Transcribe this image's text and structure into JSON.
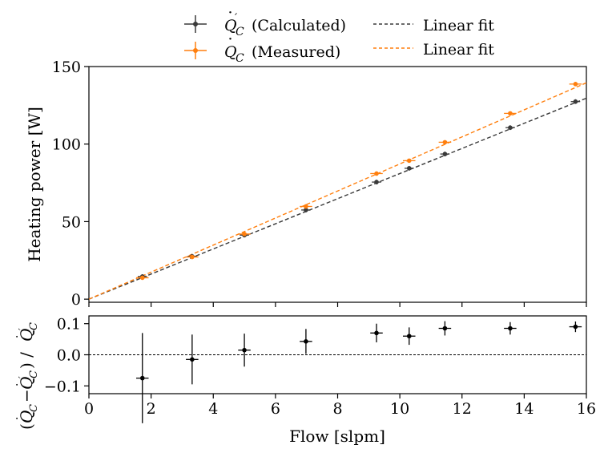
{
  "chart_data": [
    {
      "type": "scatter",
      "panel": "top",
      "ylabel": "Heating power [W]",
      "xlim": [
        0,
        16
      ],
      "ylim": [
        -2,
        150
      ],
      "yticks": [
        0,
        50,
        100,
        150
      ],
      "x": [
        1.72,
        3.32,
        5.0,
        6.98,
        9.25,
        10.3,
        11.45,
        13.55,
        15.65
      ],
      "series": [
        {
          "name": "Q'_C (Calculated)",
          "color": "#3a3a3a",
          "values": [
            14.6,
            27.6,
            41.3,
            57.5,
            75.5,
            84.4,
            93.6,
            110.6,
            127.4
          ],
          "yerr": 1.5,
          "xerr": 0.15
        },
        {
          "name": "Q_C (Measured)",
          "color": "#ff7f0e",
          "values": [
            13.8,
            27.2,
            42.0,
            59.8,
            81.0,
            89.3,
            101.2,
            119.8,
            138.7
          ],
          "yerr": 1.0,
          "xerr": 0.2
        }
      ],
      "fits": [
        {
          "name": "Linear fit",
          "color": "#3a3a3a",
          "slope": 8.1,
          "intercept": 0,
          "style": "dashed"
        },
        {
          "name": "Linear fit",
          "color": "#ff7f0e",
          "slope": 8.72,
          "intercept": 0,
          "style": "dashed"
        }
      ],
      "legend": {
        "calc_label": "(Calculated)",
        "meas_label": "(Measured)",
        "fit1_label": "Linear fit",
        "fit2_label": "Linear fit",
        "position": "above"
      }
    },
    {
      "type": "scatter",
      "panel": "bottom",
      "xlabel": "Flow [slpm]",
      "ylabel": "(Q_C - Q'_C) / Q'_C",
      "xlim": [
        0,
        16
      ],
      "ylim": [
        -0.125,
        0.125
      ],
      "xticks": [
        0,
        2,
        4,
        6,
        8,
        10,
        12,
        14,
        16
      ],
      "yticks": [
        0.1,
        0.0,
        -0.1
      ],
      "ytick_labels": [
        "0.1",
        "0.0",
        "−0.1"
      ],
      "reference_line": 0.0,
      "x": [
        1.72,
        3.32,
        5.0,
        6.98,
        9.25,
        10.3,
        11.45,
        13.55,
        15.65
      ],
      "values": [
        -0.075,
        -0.015,
        0.015,
        0.043,
        0.07,
        0.06,
        0.085,
        0.085,
        0.09
      ],
      "yerr": [
        0.145,
        0.08,
        0.053,
        0.04,
        0.03,
        0.028,
        0.023,
        0.02,
        0.017
      ],
      "xerr": 0.2,
      "color": "#000000"
    }
  ]
}
